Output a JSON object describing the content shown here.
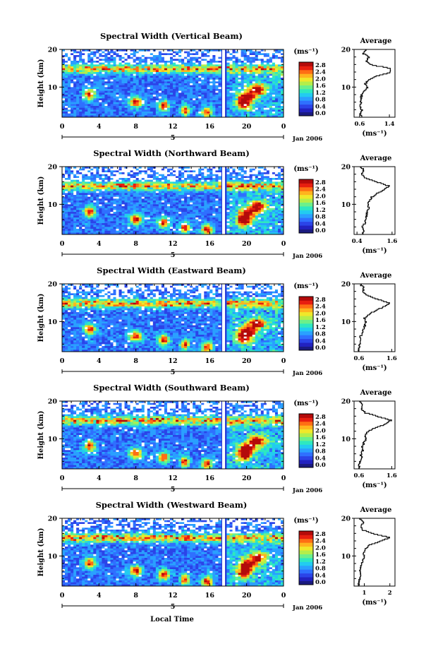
{
  "figure": {
    "xlabel": "Local Time",
    "date_label": "Jan 2006",
    "day_label": "5",
    "ylabel": "Height (km)",
    "unit_label": "(ms⁻¹)",
    "avg_title": "Average",
    "colorbar_ticks": [
      "2.8",
      "2.4",
      "2.0",
      "1.6",
      "1.2",
      "0.8",
      "0.4",
      "0.0"
    ],
    "colormap": [
      "#1a1a80",
      "#2222c0",
      "#2b44e8",
      "#2f70ff",
      "#2aa0ff",
      "#22ccf0",
      "#2ee8c0",
      "#6cf08a",
      "#b4ee4a",
      "#f0e82a",
      "#ffb41e",
      "#ff6e14",
      "#e81e10",
      "#b40a0a"
    ]
  },
  "chart_data": [
    {
      "type": "heatmap",
      "title": "Spectral Width (Vertical Beam)",
      "x_ticks": [
        "0",
        "4",
        "8",
        "12",
        "16",
        "20",
        "0"
      ],
      "xlim": [
        0,
        24
      ],
      "y_ticks": [
        "20",
        "10"
      ],
      "ylim": [
        2,
        20
      ],
      "colorbar_range": [
        0.0,
        2.8
      ],
      "average_profile": {
        "x_ticks": [
          "0.6",
          "1.4"
        ],
        "xlim": [
          0.45,
          1.55
        ],
        "height": [
          2,
          3,
          4,
          5,
          6,
          7,
          8,
          9,
          10,
          11,
          12,
          13,
          14,
          15,
          16,
          17,
          18,
          19,
          20
        ],
        "value": [
          0.65,
          0.62,
          0.66,
          0.6,
          0.64,
          0.63,
          0.65,
          0.7,
          0.8,
          0.75,
          0.85,
          1.05,
          1.4,
          1.45,
          0.95,
          0.75,
          0.85,
          0.7,
          0.8
        ]
      }
    },
    {
      "type": "heatmap",
      "title": "Spectral Width (Northward Beam)",
      "x_ticks": [
        "0",
        "4",
        "8",
        "12",
        "16",
        "20",
        "0"
      ],
      "xlim": [
        0,
        24
      ],
      "y_ticks": [
        "20",
        "10"
      ],
      "ylim": [
        2,
        20
      ],
      "colorbar_range": [
        0.0,
        2.8
      ],
      "average_profile": {
        "x_ticks": [
          "0.4",
          "1.6"
        ],
        "xlim": [
          0.3,
          1.7
        ],
        "height": [
          2,
          3,
          4,
          5,
          6,
          7,
          8,
          9,
          10,
          11,
          12,
          13,
          14,
          15,
          16,
          17,
          18,
          19,
          20
        ],
        "value": [
          0.6,
          0.62,
          0.58,
          0.66,
          0.7,
          0.72,
          0.74,
          0.8,
          0.78,
          0.82,
          0.9,
          1.1,
          1.3,
          1.5,
          1.1,
          0.7,
          0.55,
          0.65,
          0.55
        ]
      }
    },
    {
      "type": "heatmap",
      "title": "Spectral Width (Eastward Beam)",
      "x_ticks": [
        "0",
        "4",
        "8",
        "12",
        "16",
        "20",
        "0"
      ],
      "xlim": [
        0,
        24
      ],
      "y_ticks": [
        "20",
        "10"
      ],
      "ylim": [
        2,
        20
      ],
      "colorbar_range": [
        0.0,
        2.8
      ],
      "average_profile": {
        "x_ticks": [
          "0.6",
          "1.6"
        ],
        "xlim": [
          0.45,
          1.7
        ],
        "height": [
          2,
          3,
          4,
          5,
          6,
          7,
          8,
          9,
          10,
          11,
          12,
          13,
          14,
          15,
          16,
          17,
          18,
          19,
          20
        ],
        "value": [
          0.6,
          0.58,
          0.62,
          0.66,
          0.64,
          0.7,
          0.72,
          0.78,
          0.82,
          0.76,
          0.9,
          1.1,
          1.35,
          1.55,
          1.2,
          0.85,
          0.7,
          0.75,
          0.65
        ]
      }
    },
    {
      "type": "heatmap",
      "title": "Spectral Width (Southward Beam)",
      "x_ticks": [
        "0",
        "4",
        "8",
        "12",
        "16",
        "20",
        "0"
      ],
      "xlim": [
        0,
        24
      ],
      "y_ticks": [
        "20",
        "10"
      ],
      "ylim": [
        2,
        20
      ],
      "colorbar_range": [
        0.0,
        2.8
      ],
      "average_profile": {
        "x_ticks": [
          "0.6",
          "1.6"
        ],
        "xlim": [
          0.45,
          1.7
        ],
        "height": [
          2,
          3,
          4,
          5,
          6,
          7,
          8,
          9,
          10,
          11,
          12,
          13,
          14,
          15,
          16,
          17,
          18,
          19,
          20
        ],
        "value": [
          0.62,
          0.6,
          0.64,
          0.68,
          0.66,
          0.72,
          0.7,
          0.75,
          0.8,
          0.78,
          0.88,
          1.1,
          1.4,
          1.58,
          1.2,
          0.8,
          0.65,
          0.72,
          0.6
        ]
      }
    },
    {
      "type": "heatmap",
      "title": "Spectral Width (Westward Beam)",
      "x_ticks": [
        "1",
        "2"
      ],
      "xlim": [
        0,
        24
      ],
      "y_ticks": [
        "20",
        "10"
      ],
      "ylim": [
        2,
        20
      ],
      "colorbar_range": [
        0.0,
        2.8
      ],
      "time_ticks": [
        "0",
        "4",
        "8",
        "12",
        "16",
        "20",
        "0"
      ],
      "average_profile": {
        "x_ticks": [
          "1",
          "2"
        ],
        "xlim": [
          0.6,
          2.2
        ],
        "height": [
          2,
          3,
          4,
          5,
          6,
          7,
          8,
          9,
          10,
          11,
          12,
          13,
          14,
          15,
          16,
          17,
          18,
          19,
          20
        ],
        "value": [
          0.8,
          0.78,
          0.82,
          0.85,
          0.84,
          0.86,
          0.88,
          0.95,
          1.0,
          0.98,
          1.05,
          1.2,
          1.6,
          2.0,
          1.4,
          0.95,
          0.85,
          1.0,
          0.8
        ]
      }
    }
  ]
}
